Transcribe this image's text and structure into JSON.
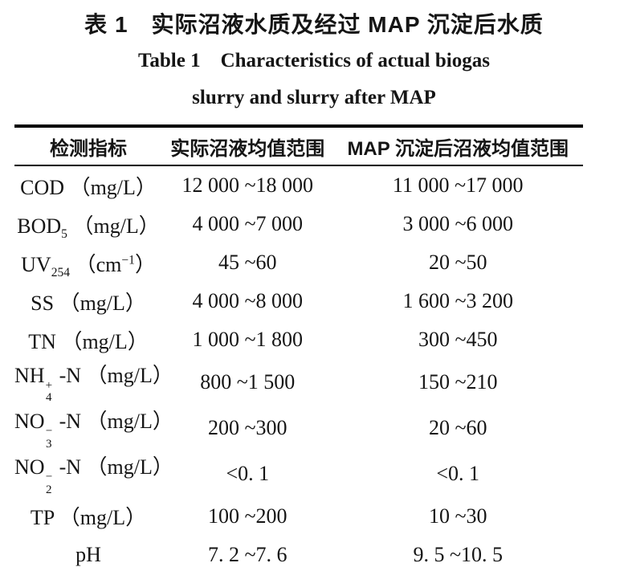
{
  "page": {
    "background": "#ffffff",
    "text_color": "#151515",
    "rule_color": "#000000"
  },
  "title": {
    "zh": "表 1　实际沼液水质及经过 MAP 沉淀后水质",
    "en_line1": "Table 1 Characteristics of actual biogas",
    "en_line2": "slurry and slurry after MAP"
  },
  "table": {
    "headers": [
      "检测指标",
      "实际沼液均值范围",
      "MAP 沉淀后沼液均值范围"
    ],
    "rows": [
      {
        "indicator": [
          {
            "text": "COD （mg/L）"
          }
        ],
        "actual": "12 000 ~18 000",
        "after_map": "11 000 ~17 000"
      },
      {
        "indicator": [
          {
            "text": "BOD"
          },
          {
            "sub": "5"
          },
          {
            "text": " （mg/L）"
          }
        ],
        "actual": "4 000 ~7 000",
        "after_map": "3 000 ~6 000"
      },
      {
        "indicator": [
          {
            "text": "UV"
          },
          {
            "sub": "254"
          },
          {
            "text": " （cm"
          },
          {
            "sup": "−1"
          },
          {
            "text": "）"
          }
        ],
        "actual": "45 ~60",
        "after_map": "20 ~50"
      },
      {
        "indicator": [
          {
            "text": "SS （mg/L）"
          }
        ],
        "actual": "4 000 ~8 000",
        "after_map": "1 600 ~3 200"
      },
      {
        "indicator": [
          {
            "text": "TN （mg/L）"
          }
        ],
        "actual": "1 000 ~1 800",
        "after_map": "300 ~450"
      },
      {
        "indicator": [
          {
            "text": "NH"
          },
          {
            "stack": {
              "sup": "+",
              "sub": "4"
            }
          },
          {
            "text": " -N （mg/L）"
          }
        ],
        "actual": "800 ~1 500",
        "after_map": "150 ~210"
      },
      {
        "indicator": [
          {
            "text": "NO"
          },
          {
            "stack": {
              "sup": "−",
              "sub": "3"
            }
          },
          {
            "text": " -N （mg/L）"
          }
        ],
        "actual": "200 ~300",
        "after_map": "20 ~60"
      },
      {
        "indicator": [
          {
            "text": "NO"
          },
          {
            "stack": {
              "sup": "−",
              "sub": "2"
            }
          },
          {
            "text": " -N （mg/L）"
          }
        ],
        "actual": "<0. 1",
        "after_map": "<0. 1"
      },
      {
        "indicator": [
          {
            "text": "TP （mg/L）"
          }
        ],
        "actual": "100 ~200",
        "after_map": "10 ~30"
      },
      {
        "indicator": [
          {
            "text": "pH"
          }
        ],
        "actual": "7. 2 ~7. 6",
        "after_map": "9. 5 ~10. 5"
      }
    ]
  }
}
